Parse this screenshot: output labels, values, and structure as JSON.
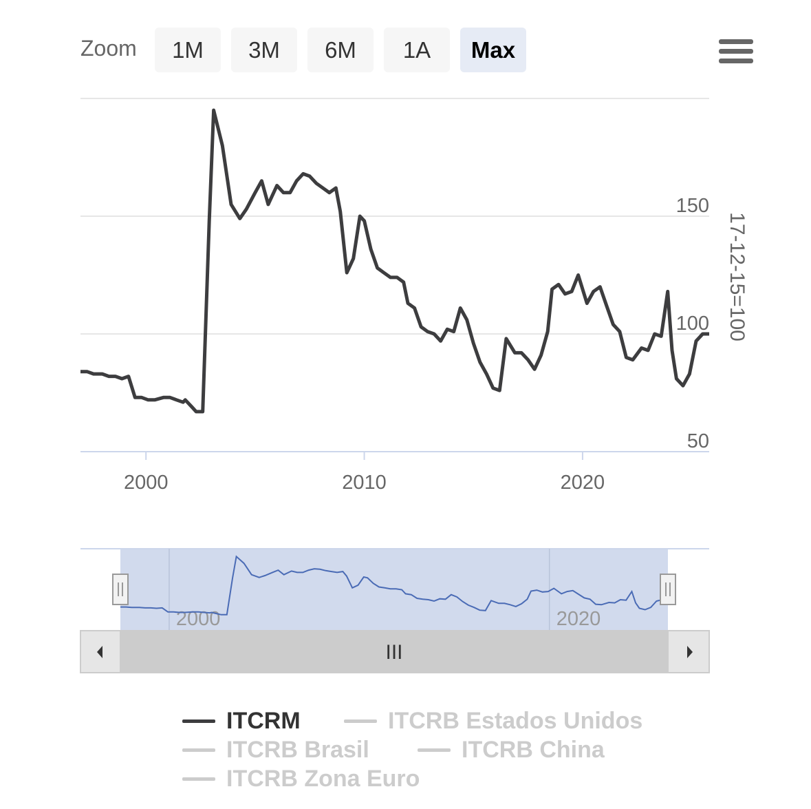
{
  "zoom": {
    "label": "Zoom",
    "buttons": [
      {
        "label": "1M",
        "active": false
      },
      {
        "label": "3M",
        "active": false
      },
      {
        "label": "6M",
        "active": false
      },
      {
        "label": "1A",
        "active": false
      },
      {
        "label": "Max",
        "active": true
      }
    ]
  },
  "menu": {
    "icon": "hamburger-menu-icon"
  },
  "colors": {
    "line": "#3d3d3f",
    "navigator_line": "#4a6bb5",
    "navigator_mask": "#ccd6eb",
    "grid": "#e6e6e6",
    "axis": "#ccd6eb",
    "legend_inactive": "#cccccc"
  },
  "chart_data": {
    "type": "line",
    "ylabel": "17-12-15=100",
    "xlabel": "",
    "yticks": [
      50,
      100,
      150
    ],
    "xticks": [
      "2000",
      "2010",
      "2020"
    ],
    "navigator_xticks": [
      "2000",
      "2020"
    ],
    "ylim": [
      50,
      200
    ],
    "xlim": [
      1997.0,
      2025.8
    ],
    "legend_position": "bottom",
    "series": [
      {
        "name": "ITCRM",
        "visible": true,
        "x": [
          1997.0,
          1997.3,
          1997.6,
          1998.0,
          1998.3,
          1998.6,
          1998.9,
          1999.2,
          1999.5,
          1999.8,
          2000.1,
          2000.4,
          2000.8,
          2001.1,
          2001.4,
          2001.7,
          2001.8,
          2002.1,
          2002.3,
          2002.6,
          2002.9,
          2003.1,
          2003.5,
          2003.9,
          2004.3,
          2004.6,
          2005.0,
          2005.3,
          2005.6,
          2006.0,
          2006.3,
          2006.6,
          2006.9,
          2007.2,
          2007.5,
          2007.8,
          2008.1,
          2008.4,
          2008.7,
          2008.9,
          2009.2,
          2009.5,
          2009.8,
          2010.0,
          2010.3,
          2010.6,
          2010.9,
          2011.2,
          2011.5,
          2011.8,
          2012.0,
          2012.3,
          2012.6,
          2012.9,
          2013.2,
          2013.5,
          2013.8,
          2014.1,
          2014.4,
          2014.7,
          2015.0,
          2015.3,
          2015.6,
          2015.9,
          2016.2,
          2016.5,
          2016.9,
          2017.2,
          2017.5,
          2017.8,
          2018.1,
          2018.4,
          2018.6,
          2018.9,
          2019.2,
          2019.5,
          2019.8,
          2020.2,
          2020.5,
          2020.8,
          2021.1,
          2021.4,
          2021.7,
          2022.0,
          2022.3,
          2022.7,
          2023.0,
          2023.3,
          2023.6,
          2023.9,
          2024.1,
          2024.3,
          2024.6,
          2024.9,
          2025.2,
          2025.5,
          2025.8
        ],
        "values": [
          84,
          84,
          83,
          83,
          82,
          82,
          81,
          82,
          73,
          73,
          72,
          72,
          73,
          73,
          72,
          71,
          72,
          69,
          67,
          67,
          148,
          195,
          180,
          155,
          149,
          153,
          160,
          165,
          155,
          163,
          160,
          160,
          165,
          168,
          167,
          164,
          162,
          160,
          162,
          152,
          126,
          132,
          150,
          148,
          136,
          128,
          126,
          124,
          124,
          122,
          113,
          111,
          103,
          101,
          100,
          97,
          102,
          101,
          111,
          106,
          96,
          88,
          83,
          77,
          76,
          98,
          92,
          92,
          89,
          85,
          91,
          101,
          119,
          121,
          117,
          118,
          125,
          113,
          118,
          120,
          112,
          104,
          101,
          90,
          89,
          94,
          93,
          100,
          99,
          118,
          93,
          81,
          78,
          83,
          97,
          100,
          100
        ]
      },
      {
        "name": "ITCRB Estados Unidos",
        "visible": false
      },
      {
        "name": "ITCRB Brasil",
        "visible": false
      },
      {
        "name": "ITCRB China",
        "visible": false
      },
      {
        "name": "ITCRB Zona Euro",
        "visible": false
      }
    ]
  },
  "navigator": {
    "left_handle_icon": "grip-handle-icon",
    "right_handle_icon": "grip-handle-icon",
    "scroll_left_icon": "arrow-left-icon",
    "scroll_right_icon": "arrow-right-icon",
    "thumb_grip": "III"
  },
  "legend": [
    {
      "name": "ITCRM",
      "active": true
    },
    {
      "name": "ITCRB Estados Unidos",
      "active": false
    },
    {
      "name": "ITCRB Brasil",
      "active": false
    },
    {
      "name": "ITCRB China",
      "active": false
    },
    {
      "name": "ITCRB Zona Euro",
      "active": false
    }
  ]
}
